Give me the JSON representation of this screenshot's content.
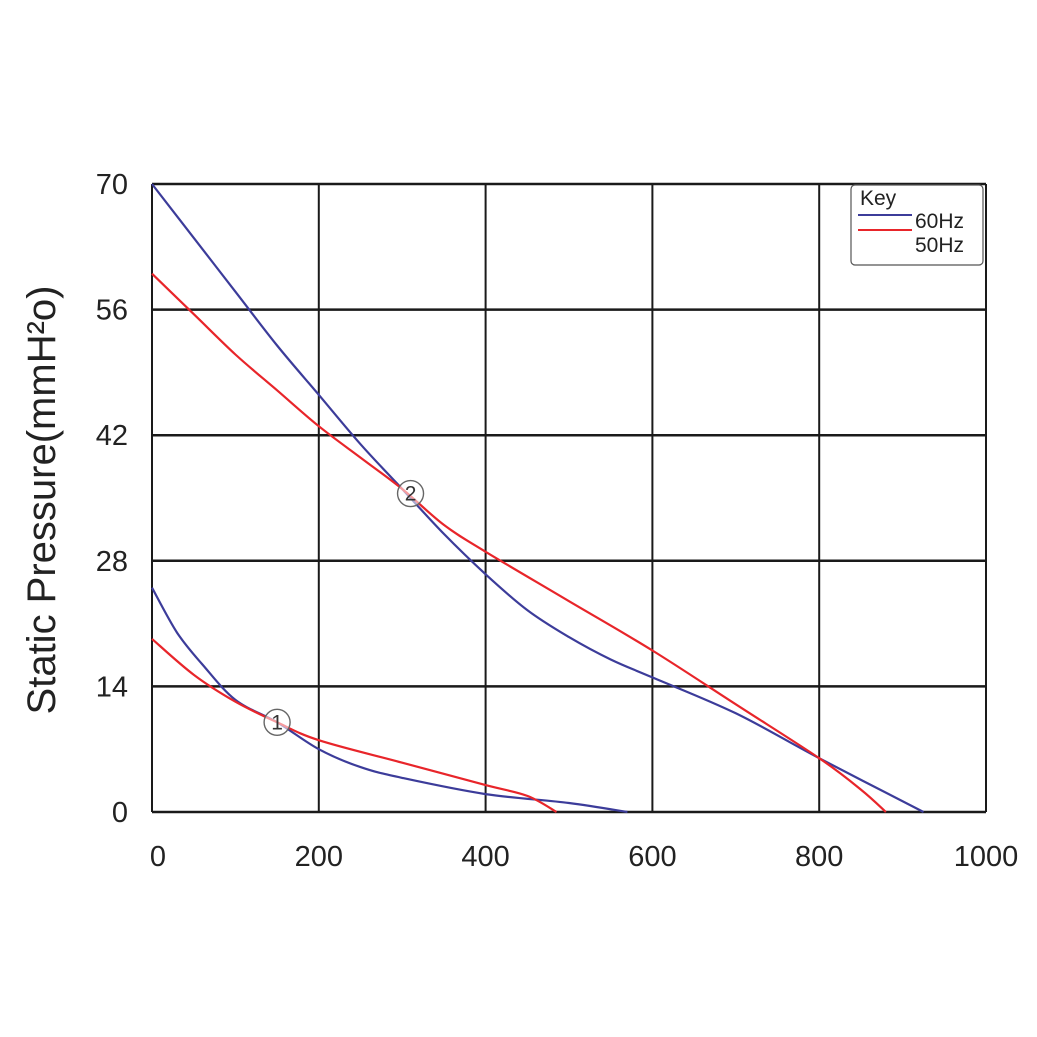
{
  "chart_data": {
    "type": "line",
    "ylabel": "Static Pressure(mmH²o)",
    "xlabel": "",
    "xlim": [
      0,
      1000
    ],
    "ylim": [
      0,
      70
    ],
    "x_ticks": [
      "0",
      "200",
      "400",
      "600",
      "800",
      "1000"
    ],
    "y_ticks": [
      "70",
      "56",
      "42",
      "28",
      "14",
      "0"
    ],
    "grid": true,
    "legend": {
      "title": "Key",
      "placement": "top-right",
      "entries": [
        {
          "label": "60Hz",
          "color": "#3c3c9a"
        },
        {
          "label": "50Hz",
          "color": "#e8252a"
        }
      ]
    },
    "series": [
      {
        "name": "60Hz",
        "group": "1",
        "color": "#3c3c9a",
        "points": [
          [
            0,
            25
          ],
          [
            30,
            20
          ],
          [
            60,
            16.5
          ],
          [
            100,
            12.5
          ],
          [
            150,
            10
          ],
          [
            200,
            7
          ],
          [
            250,
            5
          ],
          [
            300,
            3.8
          ],
          [
            400,
            2
          ],
          [
            500,
            1
          ],
          [
            570,
            0
          ]
        ]
      },
      {
        "name": "50Hz",
        "group": "1",
        "color": "#e8252a",
        "points": [
          [
            0,
            19.3
          ],
          [
            50,
            15.3
          ],
          [
            100,
            12.3
          ],
          [
            150,
            10
          ],
          [
            200,
            8
          ],
          [
            300,
            5.5
          ],
          [
            400,
            3
          ],
          [
            450,
            1.8
          ],
          [
            485,
            0
          ]
        ]
      },
      {
        "name": "60Hz",
        "group": "2",
        "color": "#3c3c9a",
        "points": [
          [
            0,
            70
          ],
          [
            50,
            64
          ],
          [
            100,
            58
          ],
          [
            150,
            52
          ],
          [
            200,
            46.5
          ],
          [
            250,
            41
          ],
          [
            300,
            36
          ],
          [
            350,
            31
          ],
          [
            400,
            26.5
          ],
          [
            450,
            22.5
          ],
          [
            500,
            19.5
          ],
          [
            550,
            17
          ],
          [
            600,
            15
          ],
          [
            700,
            11
          ],
          [
            800,
            6
          ],
          [
            925,
            0
          ]
        ]
      },
      {
        "name": "50Hz",
        "group": "2",
        "color": "#e8252a",
        "points": [
          [
            0,
            60
          ],
          [
            50,
            55.5
          ],
          [
            100,
            51
          ],
          [
            150,
            47
          ],
          [
            200,
            43
          ],
          [
            250,
            39.5
          ],
          [
            300,
            36
          ],
          [
            350,
            32
          ],
          [
            400,
            29
          ],
          [
            500,
            23.5
          ],
          [
            600,
            18
          ],
          [
            700,
            12
          ],
          [
            800,
            6
          ],
          [
            850,
            2.5
          ],
          [
            880,
            0
          ]
        ]
      }
    ],
    "annotations": [
      {
        "text": "1",
        "x": 150,
        "y": 10
      },
      {
        "text": "2",
        "x": 310,
        "y": 35.5
      }
    ]
  }
}
